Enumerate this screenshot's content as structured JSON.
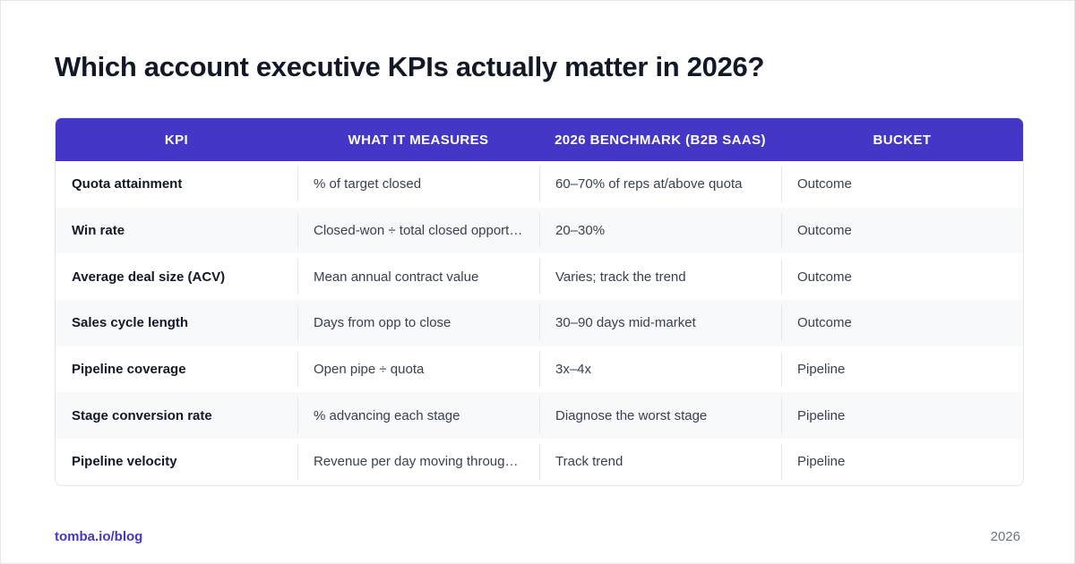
{
  "title": "Which account executive KPIs actually matter in 2026?",
  "table": {
    "headers": [
      "KPI",
      "What it measures",
      "2026 Benchmark (B2B SaaS)",
      "Bucket"
    ],
    "rows": [
      [
        "Quota attainment",
        "% of target closed",
        "60–70% of reps at/above quota",
        "Outcome"
      ],
      [
        "Win rate",
        "Closed-won ÷ total closed opportunities",
        "20–30%",
        "Outcome"
      ],
      [
        "Average deal size (ACV)",
        "Mean annual contract value",
        "Varies; track the trend",
        "Outcome"
      ],
      [
        "Sales cycle length",
        "Days from opp to close",
        "30–90 days mid-market",
        "Outcome"
      ],
      [
        "Pipeline coverage",
        "Open pipe ÷ quota",
        "3x–4x",
        "Pipeline"
      ],
      [
        "Stage conversion rate",
        "% advancing each stage",
        "Diagnose the worst stage",
        "Pipeline"
      ],
      [
        "Pipeline velocity",
        "Revenue per day moving through pipeline",
        "Track trend",
        "Pipeline"
      ]
    ]
  },
  "footer": {
    "link": "tomba.io/blog",
    "year": "2026"
  },
  "colors": {
    "header_bg": "#4437c8",
    "accent": "#4437c8",
    "stripe": "#f8f9fb",
    "title": "#111827"
  }
}
